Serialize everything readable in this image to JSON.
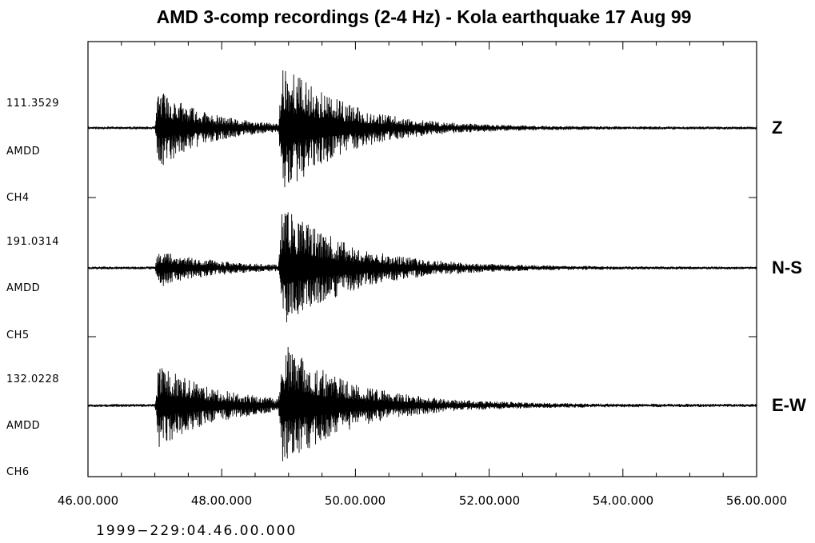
{
  "chart_data": {
    "type": "line",
    "title": "AMD 3-comp recordings (2-4 Hz)  - Kola earthquake 17 Aug 99",
    "x_ticks": [
      "46.00.000",
      "48.00.000",
      "50.00.000",
      "52.00.000",
      "54.00.000",
      "56.00.000"
    ],
    "xlim": [
      46.0,
      56.0
    ],
    "time_reference": "1999−229:04.46.00.000",
    "grid": false,
    "line_color": "#000000",
    "traces": [
      {
        "component": "Z",
        "amplitude": "111.3529",
        "station": "AMDD",
        "channel": "CH4",
        "onsets": [
          {
            "time": 47.0,
            "peak": 0.62,
            "decay": 0.7
          },
          {
            "time": 48.85,
            "peak": 1.0,
            "decay": 0.9
          }
        ],
        "noise": 0.02,
        "seed": 11
      },
      {
        "component": "N-S",
        "amplitude": "191.0314",
        "station": "AMDD",
        "channel": "CH5",
        "onsets": [
          {
            "time": 47.0,
            "peak": 0.3,
            "decay": 0.8
          },
          {
            "time": 48.85,
            "peak": 1.0,
            "decay": 1.0
          }
        ],
        "noise": 0.02,
        "seed": 23
      },
      {
        "component": "E-W",
        "amplitude": "132.0228",
        "station": "AMDD",
        "channel": "CH6",
        "onsets": [
          {
            "time": 47.0,
            "peak": 0.72,
            "decay": 0.9
          },
          {
            "time": 48.85,
            "peak": 1.0,
            "decay": 1.0
          }
        ],
        "noise": 0.025,
        "seed": 37
      }
    ]
  }
}
